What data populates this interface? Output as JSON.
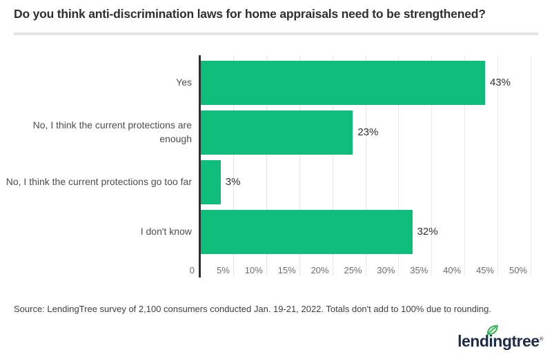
{
  "header": {
    "title": "Do you think anti-discrimination laws for home appraisals need to be strengthened?"
  },
  "chart_data": {
    "type": "bar",
    "orientation": "horizontal",
    "title": "Do you think anti-discrimination laws for home appraisals need to be strengthened?",
    "categories": [
      "Yes",
      "No, I think the current protections are enough",
      "No, I think the current protections go too far",
      "I don't know"
    ],
    "values": [
      43,
      23,
      3,
      32
    ],
    "value_labels": [
      "43%",
      "23%",
      "3%",
      "32%"
    ],
    "x_ticks": [
      {
        "value": 0,
        "label": "0"
      },
      {
        "value": 5,
        "label": "5%"
      },
      {
        "value": 10,
        "label": "10%"
      },
      {
        "value": 15,
        "label": "15%"
      },
      {
        "value": 20,
        "label": "20%"
      },
      {
        "value": 25,
        "label": "25%"
      },
      {
        "value": 30,
        "label": "30%"
      },
      {
        "value": 35,
        "label": "35%"
      },
      {
        "value": 40,
        "label": "40%"
      },
      {
        "value": 45,
        "label": "45%"
      },
      {
        "value": 50,
        "label": "50%"
      }
    ],
    "xlim": [
      0,
      50
    ],
    "xlabel": "",
    "ylabel": "",
    "grid": true,
    "legend": false,
    "bar_color": "#0ebd7a",
    "axis_line_color": "#2e2e2e",
    "gridline_color": "#e9e9e9"
  },
  "footer": {
    "source": "Source: LendingTree survey of 2,100 consumers conducted Jan. 19-21, 2022. Totals don't add to 100% due to rounding.",
    "logo_text": "lendingtree",
    "logo_trademark": "®",
    "logo_color": "#1e2b49",
    "leaf_color": "#2eb44f"
  }
}
